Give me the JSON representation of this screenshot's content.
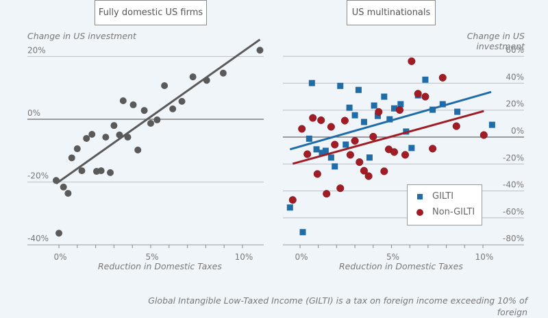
{
  "chart_data": [
    {
      "type": "scatter",
      "title": "Fully domestic US firms",
      "xlabel": "Reduction in Domestic Taxes",
      "ylabel": "Change in US investment",
      "xlim": [
        -0.5,
        11.3
      ],
      "ylim": [
        -40,
        20
      ],
      "x_ticks": [
        0,
        1,
        2,
        3,
        4,
        5,
        6,
        7,
        8,
        9,
        10
      ],
      "x_tick_labels": {
        "0": "0%",
        "5": "5%",
        "10": "10%"
      },
      "y_ticks": [
        20,
        0,
        -20,
        -40
      ],
      "y_tick_labels": [
        "20%",
        "0%",
        "-20%",
        "-40%"
      ],
      "grid": true,
      "series": [
        {
          "name": "Fully domestic US firms",
          "color": "#5a5a5a",
          "marker": "circle",
          "points": [
            [
              -0.15,
              -19.5
            ],
            [
              0.0,
              -36.3
            ],
            [
              0.25,
              -21.6
            ],
            [
              0.5,
              -23.6
            ],
            [
              0.7,
              -12.3
            ],
            [
              1.0,
              -9.4
            ],
            [
              1.25,
              -16.4
            ],
            [
              1.5,
              -6.1
            ],
            [
              1.8,
              -4.8
            ],
            [
              2.05,
              -16.6
            ],
            [
              2.3,
              -16.4
            ],
            [
              2.55,
              -5.7
            ],
            [
              2.8,
              -17.0
            ],
            [
              3.0,
              -2.0
            ],
            [
              3.3,
              -5.0
            ],
            [
              3.5,
              5.9
            ],
            [
              3.75,
              -5.7
            ],
            [
              4.05,
              4.6
            ],
            [
              4.3,
              -9.8
            ],
            [
              4.65,
              2.8
            ],
            [
              5.0,
              -1.3
            ],
            [
              5.35,
              -0.2
            ],
            [
              5.75,
              10.7
            ],
            [
              6.2,
              3.3
            ],
            [
              6.7,
              5.7
            ],
            [
              7.3,
              13.5
            ],
            [
              8.05,
              12.4
            ],
            [
              8.95,
              14.7
            ],
            [
              10.95,
              22.0
            ]
          ],
          "trendline": [
            [
              -0.15,
              -20.5
            ],
            [
              10.95,
              25.4
            ]
          ]
        }
      ]
    },
    {
      "type": "scatter",
      "title": "US multinationals",
      "xlabel": "Reduction in Domestic Taxes",
      "ylabel": "Change in US investment",
      "xlim": [
        -0.95,
        12.2
      ],
      "ylim": [
        -80,
        60
      ],
      "x_ticks": [
        0,
        1,
        2,
        3,
        4,
        5,
        6,
        7,
        8,
        9,
        10
      ],
      "x_tick_labels": {
        "0": "0%",
        "5": "5%",
        "10": "10%"
      },
      "y_ticks": [
        60,
        40,
        20,
        0,
        -20,
        -40,
        -60,
        -80
      ],
      "y_tick_labels": [
        "60%",
        "40%",
        "20%",
        "0%",
        "-20%",
        "-40%",
        "-60%",
        "-80%"
      ],
      "grid": true,
      "legend": {
        "placement": "bottom-right",
        "entries": [
          "GILTI",
          "Non-GILTI"
        ]
      },
      "series": [
        {
          "name": "GILTI",
          "color": "#1f6ca7",
          "marker": "square",
          "points": [
            [
              -0.55,
              -52.3
            ],
            [
              0.15,
              -70.6
            ],
            [
              0.5,
              -1.2
            ],
            [
              0.65,
              40.1
            ],
            [
              0.9,
              -9.1
            ],
            [
              1.2,
              -11.7
            ],
            [
              1.4,
              -10.2
            ],
            [
              1.7,
              -15.2
            ],
            [
              1.9,
              -21.8
            ],
            [
              2.2,
              38.0
            ],
            [
              2.5,
              -5.6
            ],
            [
              2.7,
              21.8
            ],
            [
              3.0,
              16.2
            ],
            [
              3.2,
              35.0
            ],
            [
              3.5,
              11.2
            ],
            [
              3.8,
              -15.2
            ],
            [
              4.05,
              23.4
            ],
            [
              4.25,
              15.7
            ],
            [
              4.6,
              30.0
            ],
            [
              4.9,
              13.2
            ],
            [
              5.15,
              21.3
            ],
            [
              5.5,
              24.4
            ],
            [
              5.8,
              4.1
            ],
            [
              6.1,
              -8.1
            ],
            [
              6.45,
              31.0
            ],
            [
              6.85,
              42.6
            ],
            [
              7.25,
              20.3
            ],
            [
              7.8,
              24.4
            ],
            [
              8.6,
              18.8
            ],
            [
              10.5,
              9.1
            ]
          ],
          "trendline": [
            [
              -0.55,
              -9.1
            ],
            [
              10.45,
              33.5
            ]
          ]
        },
        {
          "name": "Non-GILTI",
          "color": "#a01d26",
          "marker": "circle",
          "points": [
            [
              -0.4,
              -46.7
            ],
            [
              0.1,
              6.1
            ],
            [
              0.4,
              -12.7
            ],
            [
              0.7,
              14.2
            ],
            [
              0.95,
              -27.4
            ],
            [
              1.15,
              12.5
            ],
            [
              1.45,
              -42.1
            ],
            [
              1.7,
              7.6
            ],
            [
              1.9,
              -5.6
            ],
            [
              2.2,
              -38.0
            ],
            [
              2.45,
              12.2
            ],
            [
              2.75,
              -13.2
            ],
            [
              3.0,
              -2.8
            ],
            [
              3.25,
              -18.6
            ],
            [
              3.5,
              -25.0
            ],
            [
              3.75,
              -29.0
            ],
            [
              4.0,
              0.3
            ],
            [
              4.3,
              18.7
            ],
            [
              4.6,
              -25.4
            ],
            [
              4.85,
              -9.1
            ],
            [
              5.15,
              -11.1
            ],
            [
              5.45,
              20.1
            ],
            [
              5.75,
              -13.2
            ],
            [
              6.1,
              56.3
            ],
            [
              6.45,
              32.2
            ],
            [
              6.85,
              30.0
            ],
            [
              7.25,
              -8.6
            ],
            [
              7.8,
              44.1
            ],
            [
              8.55,
              8.1
            ],
            [
              10.05,
              1.5
            ]
          ],
          "trendline": [
            [
              -0.4,
              -19.8
            ],
            [
              10.05,
              19.3
            ]
          ]
        }
      ]
    }
  ],
  "panels": {
    "left_title": "Fully domestic US firms",
    "right_title": "US multinationals",
    "left_ylabel": "Change in US investment",
    "right_ylabel": "Change in US investment",
    "left_xlabel": "Reduction in Domestic Taxes",
    "right_xlabel": "Reduction in Domestic Taxes"
  },
  "legend": {
    "gilti": "GILTI",
    "non_gilti": "Non-GILTI"
  },
  "caption": "Global Intangible Low-Taxed Income (GILTI) is a tax on foreign income exceeding 10% of foreign"
}
